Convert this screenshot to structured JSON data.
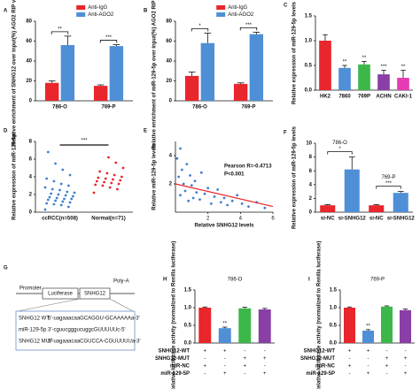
{
  "chart_data": [
    {
      "type": "bar",
      "label": "A",
      "ylabel": "Relative enrichment of SNHG12 over input(%) AGO2 RIP vs IgG RIP",
      "categories": [
        "786-O",
        "769-P"
      ],
      "series": [
        {
          "name": "Anti-IgG",
          "color": "#e8262b",
          "values": [
            18,
            15
          ],
          "errors": [
            2,
            1
          ]
        },
        {
          "name": "Anti-AGO2",
          "color": "#4f8fd6",
          "values": [
            56,
            55
          ],
          "errors": [
            9,
            1.5
          ]
        }
      ],
      "ylim": [
        0,
        80
      ],
      "yticks": [
        0,
        20,
        40,
        60,
        80
      ],
      "significance": [
        "**",
        "***"
      ]
    },
    {
      "type": "bar",
      "label": "B",
      "ylabel": "Relative enrichment of miR-129-5p over input(%) AGO2 RIP vs IgG RIP",
      "categories": [
        "786-O",
        "769-P"
      ],
      "series": [
        {
          "name": "Anti-IgG",
          "color": "#e8262b",
          "values": [
            25,
            17
          ],
          "errors": [
            4,
            1
          ]
        },
        {
          "name": "Anti-AGO2",
          "color": "#4f8fd6",
          "values": [
            58,
            67
          ],
          "errors": [
            10,
            2
          ]
        }
      ],
      "ylim": [
        0,
        80
      ],
      "yticks": [
        0,
        20,
        40,
        60,
        80
      ],
      "significance": [
        "*",
        "***"
      ]
    },
    {
      "type": "bar",
      "label": "C",
      "ylabel": "Relative expression of miR-129-5p levels",
      "categories": [
        "HK2",
        "7860",
        "769P",
        "ACHN",
        "CAKI-1"
      ],
      "values": [
        1.0,
        0.45,
        0.52,
        0.32,
        0.25
      ],
      "errors": [
        0.12,
        0.05,
        0.06,
        0.08,
        0.15
      ],
      "colors": [
        "#e8262b",
        "#4f8fd6",
        "#3cb84a",
        "#8a3fa6",
        "#e63cb4"
      ],
      "ylim": [
        0,
        1.5
      ],
      "yticks": [
        {
          "value": 0,
          "label": "0.0"
        },
        {
          "value": 0.5,
          "label": "0.5"
        },
        {
          "value": 1,
          "label": "1.0"
        },
        {
          "value": 1.5,
          "label": "1.5"
        }
      ],
      "significance": [
        null,
        "**",
        "**",
        "***",
        "**"
      ]
    },
    {
      "type": "strip",
      "label": "D",
      "ylabel": "Relative expression of miR-129-5p",
      "series": [
        {
          "name": "ccRCC(n=508)",
          "color": "#3f7fd0",
          "values": [
            0.3,
            0.6,
            0.8,
            0.9,
            1.0,
            1.1,
            1.2,
            1.3,
            1.4,
            1.5,
            1.5,
            1.6,
            1.7,
            1.8,
            1.9,
            2.0,
            2.1,
            2.2,
            2.3,
            2.5,
            2.6,
            2.8,
            3.0,
            3.2,
            3.5,
            3.8,
            4.2,
            4.8,
            5.5,
            6.8
          ]
        },
        {
          "name": "Normal(n=71)",
          "color": "#e8262b",
          "values": [
            2.2,
            2.6,
            2.8,
            3.0,
            3.1,
            3.2,
            3.3,
            3.4,
            3.5,
            3.6,
            3.7,
            3.8,
            3.9,
            4.0,
            4.2,
            4.4,
            4.6,
            5.0,
            5.6,
            6.2
          ]
        }
      ],
      "ylim": [
        0,
        8
      ],
      "yticks": [
        0,
        2,
        4,
        6,
        8
      ],
      "significance": "***"
    },
    {
      "type": "scatter",
      "label": "E",
      "ylabel": "Relative miR-129-5p levels",
      "xlabel": "Relative SNHG12 levels",
      "color": "#3f7fd0",
      "x": [
        0.1,
        0.2,
        0.3,
        0.3,
        0.4,
        0.5,
        0.6,
        0.7,
        0.8,
        0.9,
        1.0,
        1.1,
        1.2,
        1.3,
        1.5,
        1.6,
        1.8,
        2.0,
        2.2,
        2.4,
        2.6,
        2.8,
        3.0,
        3.2,
        3.5,
        3.8,
        4.1,
        4.5,
        5.0,
        5.5
      ],
      "y": [
        3.8,
        2.5,
        4.5,
        1.2,
        3.0,
        2.0,
        1.5,
        3.4,
        0.8,
        2.6,
        1.9,
        1.0,
        2.2,
        1.4,
        0.9,
        2.8,
        1.3,
        1.7,
        0.6,
        1.1,
        1.6,
        0.7,
        1.0,
        0.5,
        0.8,
        1.2,
        0.6,
        0.4,
        0.7,
        0.3
      ],
      "fit": {
        "x": [
          0,
          6
        ],
        "y": [
          2.0,
          0.4
        ]
      },
      "fit_color": "#e8262b",
      "xlim": [
        0,
        6
      ],
      "xticks": [
        2,
        4,
        6
      ],
      "ylim": [
        0,
        5
      ],
      "yticks": [
        2,
        4
      ],
      "annotations": [
        "Pearson  R=-0.4713",
        "P<0.001"
      ]
    },
    {
      "type": "bar",
      "label": "F",
      "ylabel": "Relative expression of miR-129-5p levels",
      "categories": [
        "si-NC",
        "si-SNHG12",
        "si-NC",
        "si-SNHG12"
      ],
      "values": [
        1.0,
        6.2,
        1.0,
        2.8
      ],
      "errors": [
        0.1,
        1.8,
        0.1,
        0.2
      ],
      "colors": [
        "#e8262b",
        "#4f8fd6",
        "#e8262b",
        "#4f8fd6"
      ],
      "ylim": [
        0,
        10
      ],
      "yticks": [
        0,
        2,
        4,
        6,
        8,
        10
      ],
      "groups": [
        {
          "name": "786-O",
          "significance": "*"
        },
        {
          "name": "769-P",
          "significance": "***"
        }
      ]
    },
    {
      "type": "bar",
      "label": "H",
      "title": "786-O",
      "ylabel": "Relative luciferase activity (normalized to Renilla luciferase)",
      "values": [
        1.0,
        0.42,
        0.98,
        0.95
      ],
      "errors": [
        0.02,
        0.03,
        0.03,
        0.03
      ],
      "colors": [
        "#e8262b",
        "#4f8fd6",
        "#3cb84a",
        "#8a3fa6"
      ],
      "ylim": [
        0,
        1.5
      ],
      "yticks": [
        {
          "value": 0,
          "label": "0.0"
        },
        {
          "value": 0.5,
          "label": "0.5"
        },
        {
          "value": 1,
          "label": "1.0"
        },
        {
          "value": 1.5,
          "label": "1.5"
        }
      ],
      "significance": [
        null,
        "**",
        null,
        null
      ],
      "conditions": [
        {
          "name": "SNHG12-WT",
          "marks": [
            "+",
            "+",
            "-",
            "-"
          ]
        },
        {
          "name": "SNHG12-MUT",
          "marks": [
            "-",
            "-",
            "+",
            "+"
          ]
        },
        {
          "name": "miR-NC",
          "marks": [
            "+",
            "-",
            "+",
            "-"
          ]
        },
        {
          "name": "miR-129-5P",
          "marks": [
            "-",
            "+",
            "-",
            "+"
          ]
        }
      ]
    },
    {
      "type": "bar",
      "label": "I",
      "title": "769-P",
      "ylabel": "Relative luciferase activity (normalized to Renilla luciferase)",
      "values": [
        1.0,
        0.35,
        1.03,
        0.93
      ],
      "errors": [
        0.02,
        0.03,
        0.02,
        0.03
      ],
      "colors": [
        "#e8262b",
        "#4f8fd6",
        "#3cb84a",
        "#8a3fa6"
      ],
      "ylim": [
        0,
        1.5
      ],
      "yticks": [
        {
          "value": 0,
          "label": "0.0"
        },
        {
          "value": 0.5,
          "label": "0.5"
        },
        {
          "value": 1,
          "label": "1.0"
        },
        {
          "value": 1.5,
          "label": "1.5"
        }
      ],
      "significance": [
        null,
        "**",
        null,
        null
      ],
      "conditions": [
        {
          "name": "SNHG12-WT",
          "marks": [
            "+",
            "+",
            "-",
            "-"
          ]
        },
        {
          "name": "SNHG12-MUT",
          "marks": [
            "-",
            "-",
            "+",
            "+"
          ]
        },
        {
          "name": "miR-NC",
          "marks": [
            "+",
            "-",
            "+",
            "-"
          ]
        },
        {
          "name": "miR-129-5P",
          "marks": [
            "-",
            "+",
            "-",
            "+"
          ]
        }
      ]
    }
  ],
  "diagram": {
    "label": "G",
    "promoter": "Promoter",
    "luciferase": "Luciferase",
    "gene": "SNHG12",
    "polya": "Poly-A",
    "sequences": [
      {
        "name": "SNHG12 WT",
        "seq": "5'-uagaaacaaGCAGGU-GCAAAAAa-3'"
      },
      {
        "name": "miR-129-5p",
        "seq": "3'-cguucgggucuggcGUUUUUc-5'"
      },
      {
        "name": "SNHG12 MUT",
        "seq": "5'-uagaaacaaCGUCCA-CGUUUUUa-3'"
      }
    ]
  }
}
